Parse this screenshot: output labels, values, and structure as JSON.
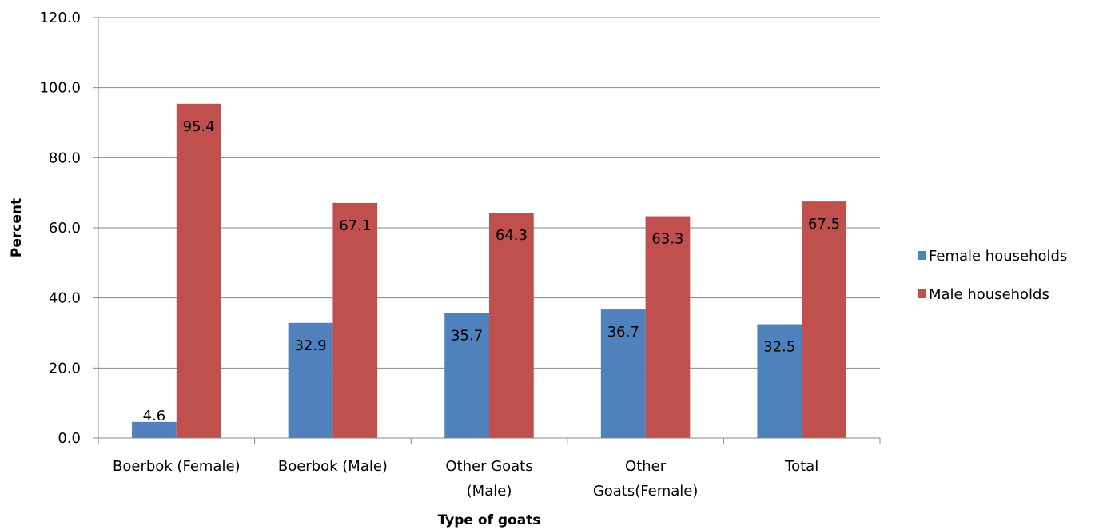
{
  "chart_data": {
    "type": "bar",
    "title": "",
    "xlabel": "Type of goats",
    "ylabel": "Percent",
    "ylim": [
      0,
      120
    ],
    "yticks": [
      "0.0",
      "20.0",
      "40.0",
      "60.0",
      "80.0",
      "100.0",
      "120.0"
    ],
    "grid": true,
    "legend_position": "right",
    "categories": [
      [
        "Boerbok (Female)"
      ],
      [
        "Boerbok (Male)"
      ],
      [
        "Other Goats",
        "(Male)"
      ],
      [
        "Other",
        "Goats(Female)"
      ],
      [
        "Total"
      ]
    ],
    "series": [
      {
        "name": "Female households",
        "color": "#4f81bd",
        "values": [
          4.6,
          32.9,
          35.7,
          36.7,
          32.5
        ],
        "labels": [
          "4.6",
          "32.9",
          "35.7",
          "36.7",
          "32.5"
        ]
      },
      {
        "name": "Male households",
        "color": "#c0504d",
        "values": [
          95.4,
          67.1,
          64.3,
          63.3,
          67.5
        ],
        "labels": [
          "95.4",
          "67.1",
          "64.3",
          "63.3",
          "67.5"
        ]
      }
    ]
  }
}
